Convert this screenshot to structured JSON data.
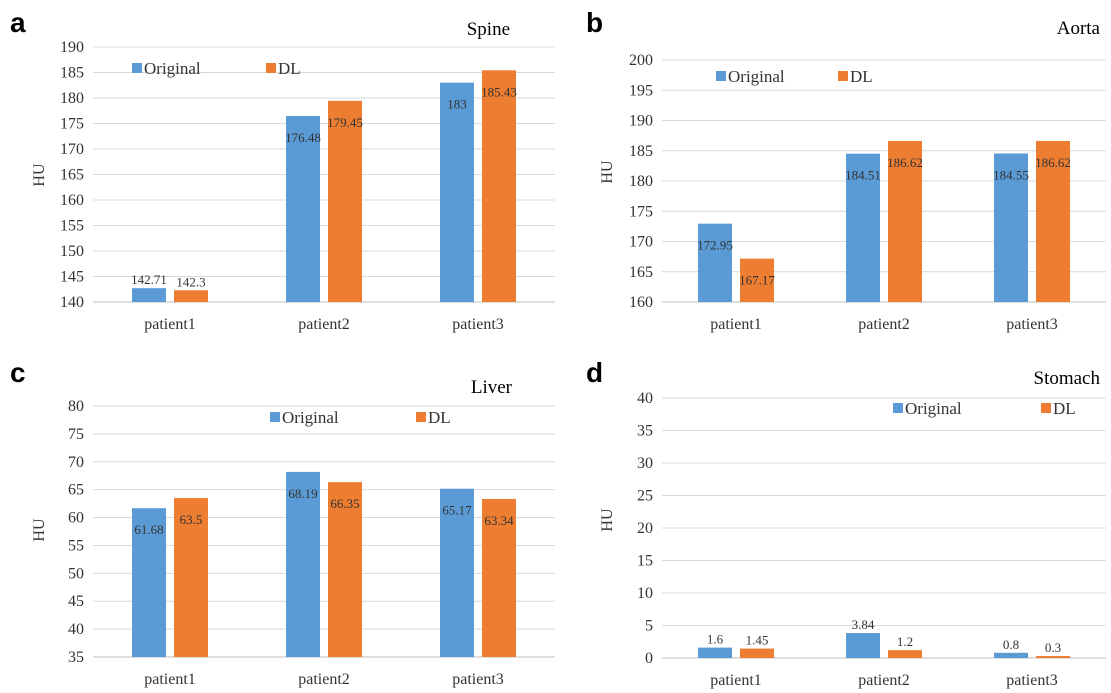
{
  "panel_letters": [
    "a",
    "b",
    "c",
    "d"
  ],
  "chart_data": [
    {
      "type": "bar",
      "title": "Spine",
      "ylabel": "HU",
      "xlabel": "",
      "categories": [
        "patient1",
        "patient2",
        "patient3"
      ],
      "ylim": [
        140,
        190
      ],
      "ytick_step": 5,
      "grid": true,
      "legend": "top-left",
      "series": [
        {
          "name": "Original",
          "color": "#5b9bd5",
          "values": [
            142.71,
            176.48,
            183
          ],
          "labels": [
            "142.71",
            "176.48",
            "183"
          ]
        },
        {
          "name": "DL",
          "color": "#ed7d31",
          "values": [
            142.3,
            179.45,
            185.43
          ],
          "labels": [
            "142.3",
            "179.45",
            "185.43"
          ]
        }
      ]
    },
    {
      "type": "bar",
      "title": "Aorta",
      "ylabel": "HU",
      "xlabel": "",
      "categories": [
        "patient1",
        "patient2",
        "patient3"
      ],
      "ylim": [
        160,
        200
      ],
      "ytick_step": 5,
      "grid": true,
      "legend": "top-left",
      "series": [
        {
          "name": "Original",
          "color": "#5b9bd5",
          "values": [
            172.95,
            184.51,
            184.55
          ],
          "labels": [
            "172.95",
            "184.51",
            "184.55"
          ]
        },
        {
          "name": "DL",
          "color": "#ed7d31",
          "values": [
            167.17,
            186.62,
            186.62
          ],
          "labels": [
            "167.17",
            "186.62",
            "186.62"
          ]
        }
      ]
    },
    {
      "type": "bar",
      "title": "Liver",
      "ylabel": "HU",
      "xlabel": "",
      "categories": [
        "patient1",
        "patient2",
        "patient3"
      ],
      "ylim": [
        35,
        80
      ],
      "ytick_step": 5,
      "grid": true,
      "legend": "top-center",
      "series": [
        {
          "name": "Original",
          "color": "#5b9bd5",
          "values": [
            61.68,
            68.19,
            65.17
          ],
          "labels": [
            "61.68",
            "68.19",
            "65.17"
          ]
        },
        {
          "name": "DL",
          "color": "#ed7d31",
          "values": [
            63.5,
            66.35,
            63.34
          ],
          "labels": [
            "63.5",
            "66.35",
            "63.34"
          ]
        }
      ]
    },
    {
      "type": "bar",
      "title": "Stomach",
      "ylabel": "HU",
      "xlabel": "",
      "categories": [
        "patient1",
        "patient2",
        "patient3"
      ],
      "ylim": [
        0,
        40
      ],
      "ytick_step": 5,
      "grid": true,
      "legend": "top-right",
      "series": [
        {
          "name": "Original",
          "color": "#5b9bd5",
          "values": [
            1.6,
            3.84,
            0.8
          ],
          "labels": [
            "1.6",
            "3.84",
            "0.8"
          ]
        },
        {
          "name": "DL",
          "color": "#ed7d31",
          "values": [
            1.45,
            1.2,
            0.3
          ],
          "labels": [
            "1.45",
            "1.2",
            "0.3"
          ]
        }
      ]
    }
  ]
}
